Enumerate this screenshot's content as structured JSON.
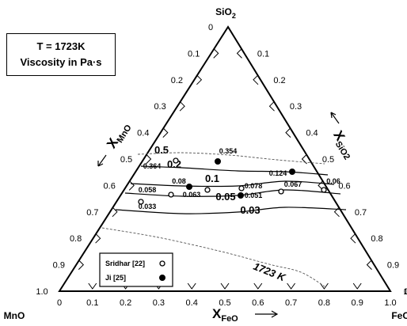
{
  "chart_data": {
    "type": "ternary",
    "condition_box": {
      "line1": "T = 1723K",
      "line2": "Viscosity in Pa·s"
    },
    "vertices": {
      "top": "SiO",
      "top_sub": "2",
      "bottom_left": "MnO",
      "bottom_right": "FeO"
    },
    "axes": {
      "mno": {
        "label": "X",
        "sub": "MnO"
      },
      "sio2": {
        "label": "X",
        "sub": "SiO2"
      },
      "feo": {
        "label": "X",
        "sub": "FeO"
      },
      "ticks": [
        "0",
        "0.1",
        "0.2",
        "0.3",
        "0.4",
        "0.5",
        "0.6",
        "0.7",
        "0.8",
        "0.9",
        "1.0"
      ],
      "right_ticks": [
        "1.0",
        "0.9",
        "0.8",
        "0.7",
        "0.6",
        "0.5",
        "0.4",
        "0.3",
        "0.2",
        "0.1",
        "0"
      ],
      "arrow_symbol": "→"
    },
    "iso_viscosity_lines": [
      {
        "label": "0.5",
        "style": "solid",
        "points": [
          [
            0.488,
            0.512
          ],
          [
            0.575,
            0.43
          ],
          [
            0.686,
            0.318
          ],
          [
            0.82,
            0.18
          ],
          [
            0.988,
            0.012
          ]
        ]
      },
      {
        "label": "0.2",
        "style": "solid",
        "points": [
          [
            0.515,
            0.485
          ],
          [
            0.52,
            0.44
          ],
          [
            0.55,
            0.41
          ],
          [
            0.58,
            0.38
          ]
        ]
      },
      {
        "label": "0.1",
        "style": "solid",
        "points": [
          [
            0.61,
            0.39
          ],
          [
            0.56,
            0.385
          ],
          [
            0.465,
            0.415
          ],
          [
            0.39,
            0.475
          ]
        ]
      },
      {
        "label": "0.05",
        "style": "solid",
        "points": [
          [
            0.658,
            0.342
          ],
          [
            0.58,
            0.35
          ],
          [
            0.465,
            0.385
          ],
          [
            0.372,
            0.412
          ],
          [
            0.333,
            0.43
          ]
        ]
      },
      {
        "label": "0.03",
        "style": "solid",
        "points": [
          [
            0.705,
            0.295
          ],
          [
            0.6,
            0.32
          ],
          [
            0.465,
            0.35
          ],
          [
            0.355,
            0.375
          ],
          [
            0.305,
            0.295
          ]
        ]
      }
    ],
    "limit_lines": [
      {
        "label": "",
        "style": "dashed",
        "points": [
          [
            0.488,
            0.512
          ],
          [
            0.47,
            0.5
          ],
          [
            0.44,
            0.48
          ],
          [
            0.4,
            0.46
          ],
          [
            0.36,
            0.45
          ],
          [
            0.33,
            0.45
          ]
        ]
      },
      {
        "label": "1723 K",
        "style": "dashed",
        "points": [
          [
            0.73,
            0.27
          ],
          [
            0.77,
            0.185
          ],
          [
            0.758,
            0.149
          ],
          [
            0.76,
            0.08
          ],
          [
            0.79,
            0.012
          ]
        ]
      }
    ],
    "series": [
      {
        "name": "Sridhar [22]",
        "marker": "open-circle",
        "points": [
          {
            "sio2": 0.487,
            "mno": 0.387,
            "label": "0.364"
          },
          {
            "sio2": 0.39,
            "mno": 0.55,
            "label": "0.058"
          },
          {
            "sio2": 0.37,
            "mno": 0.43,
            "label": "0.063"
          },
          {
            "sio2": 0.38,
            "mno": 0.3,
            "label": "0.078"
          },
          {
            "sio2": 0.37,
            "mno": 0.15,
            "label": "0.067"
          },
          {
            "sio2": 0.38,
            "mno": 0.07,
            "label": "0.06"
          },
          {
            "sio2": 0.32,
            "mno": 0.62,
            "label": "0.033"
          }
        ]
      },
      {
        "name": "Ji [25]",
        "marker": "filled-circle",
        "points": [
          {
            "sio2": 0.48,
            "mno": 0.26,
            "label": "0.354"
          },
          {
            "sio2": 0.45,
            "mno": 0.08,
            "label": "0.124"
          },
          {
            "sio2": 0.4,
            "mno": 0.43,
            "label": "0.08"
          },
          {
            "sio2": 0.36,
            "mno": 0.3,
            "label": "0.051"
          }
        ]
      }
    ],
    "legend": {
      "position": "bottom-left inside triangle",
      "entries": [
        "Sridhar [22]",
        "Ji [25]"
      ]
    }
  }
}
